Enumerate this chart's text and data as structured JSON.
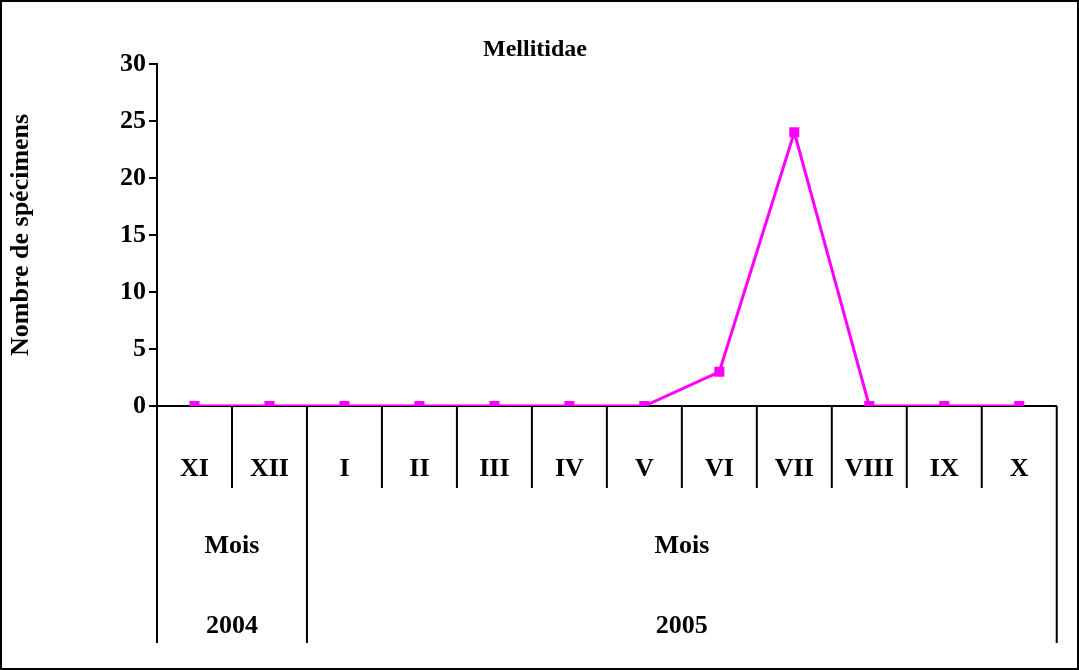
{
  "chart_data": {
    "type": "line",
    "title": "Mellitidae",
    "ylabel": "Nombre de spécimens",
    "categories": [
      "XI",
      "XII",
      "I",
      "II",
      "III",
      "IV",
      "V",
      "VI",
      "VII",
      "VIII",
      "IX",
      "X"
    ],
    "series": [
      {
        "color": "#ff00ff",
        "values": [
          0,
          0,
          0,
          0,
          0,
          0,
          0,
          3,
          24,
          0,
          0,
          0
        ]
      }
    ],
    "ylim": [
      0,
      30
    ],
    "yticks": [
      0,
      5,
      10,
      15,
      20,
      25,
      30
    ],
    "grid": false,
    "legend": false,
    "marker": "square",
    "line_style": "solid",
    "annotations": [
      "Mois",
      "2004",
      "Mois",
      "2005"
    ]
  }
}
